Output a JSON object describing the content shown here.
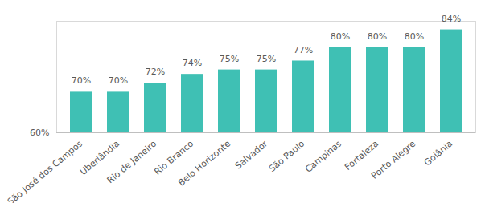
{
  "chart_data": {
    "type": "bar",
    "categories": [
      "São José dos Campos",
      "Uberlândia",
      "Rio de Janeiro",
      "Rio Branco",
      "Belo Horizonte",
      "Salvador",
      "São Paulo",
      "Campinas",
      "Fortaleza",
      "Porto Alegre",
      "Goiânia"
    ],
    "values": [
      70,
      70,
      72,
      74,
      75,
      75,
      77,
      80,
      80,
      80,
      84
    ],
    "value_labels": [
      "70%",
      "70%",
      "72%",
      "74%",
      "75%",
      "75%",
      "77%",
      "80%",
      "80%",
      "80%",
      "84%"
    ],
    "color": "#3fc0b4",
    "ylim": [
      60,
      85
    ],
    "yticks": [
      {
        "value": 60,
        "label": "60%"
      }
    ],
    "grid": false,
    "data_labels": true
  }
}
